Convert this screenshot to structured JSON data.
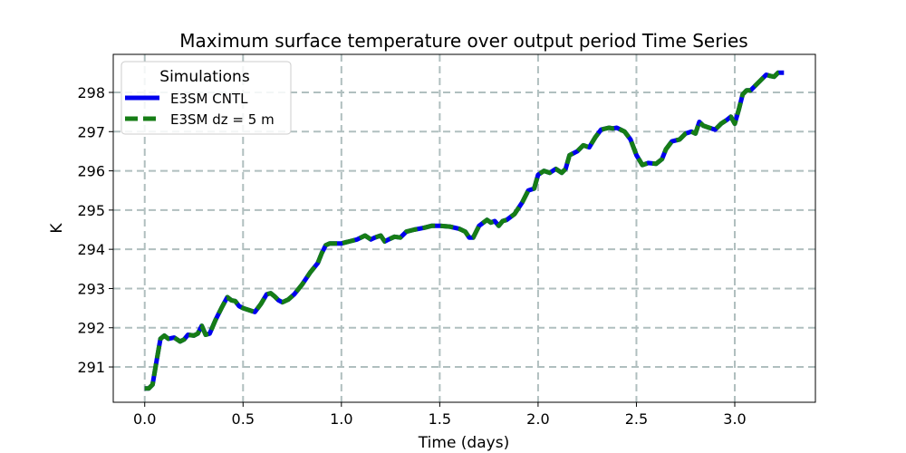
{
  "chart_data": {
    "type": "line",
    "title": "Maximum surface temperature over output period Time Series",
    "xlabel": "Time (days)",
    "ylabel": "K",
    "xlim": [
      -0.16,
      3.41
    ],
    "ylim": [
      290.1,
      298.97
    ],
    "xticks": [
      0.0,
      0.5,
      1.0,
      1.5,
      2.0,
      2.5,
      3.0
    ],
    "xtick_labels": [
      "0.0",
      "0.5",
      "1.0",
      "1.5",
      "2.0",
      "2.5",
      "3.0"
    ],
    "yticks": [
      291,
      292,
      293,
      294,
      295,
      296,
      297,
      298
    ],
    "ytick_labels": [
      "291",
      "292",
      "293",
      "294",
      "295",
      "296",
      "297",
      "298"
    ],
    "grid": true,
    "legend": {
      "title": "Simulations",
      "placement": "top-left"
    },
    "series": [
      {
        "name": "E3SM CNTL",
        "color": "#0000ee",
        "style": "solid",
        "x": [
          0.0,
          0.02,
          0.04,
          0.06,
          0.08,
          0.1,
          0.12,
          0.15,
          0.18,
          0.2,
          0.22,
          0.25,
          0.27,
          0.29,
          0.31,
          0.33,
          0.36,
          0.39,
          0.42,
          0.44,
          0.46,
          0.48,
          0.5,
          0.53,
          0.56,
          0.59,
          0.62,
          0.64,
          0.66,
          0.68,
          0.7,
          0.73,
          0.76,
          0.8,
          0.84,
          0.88,
          0.9,
          0.92,
          0.94,
          0.96,
          1.0,
          1.04,
          1.08,
          1.12,
          1.15,
          1.17,
          1.2,
          1.22,
          1.24,
          1.27,
          1.3,
          1.33,
          1.37,
          1.42,
          1.46,
          1.5,
          1.55,
          1.6,
          1.63,
          1.65,
          1.67,
          1.7,
          1.74,
          1.76,
          1.78,
          1.8,
          1.82,
          1.84,
          1.88,
          1.92,
          1.95,
          1.98,
          2.0,
          2.03,
          2.06,
          2.09,
          2.12,
          2.14,
          2.16,
          2.18,
          2.2,
          2.23,
          2.26,
          2.29,
          2.32,
          2.36,
          2.38,
          2.4,
          2.44,
          2.47,
          2.5,
          2.53,
          2.56,
          2.6,
          2.63,
          2.65,
          2.68,
          2.72,
          2.75,
          2.78,
          2.8,
          2.82,
          2.84,
          2.87,
          2.9,
          2.93,
          2.96,
          2.98,
          3.0,
          3.02,
          3.04,
          3.06,
          3.08,
          3.1,
          3.13,
          3.16,
          3.18,
          3.2,
          3.22,
          3.25
        ],
        "y": [
          290.45,
          290.45,
          290.55,
          291.15,
          291.72,
          291.8,
          291.72,
          291.75,
          291.65,
          291.7,
          291.82,
          291.8,
          291.85,
          292.05,
          291.82,
          291.85,
          292.2,
          292.5,
          292.78,
          292.7,
          292.68,
          292.55,
          292.5,
          292.45,
          292.4,
          292.6,
          292.85,
          292.88,
          292.8,
          292.7,
          292.65,
          292.72,
          292.85,
          293.1,
          293.4,
          293.65,
          293.9,
          294.1,
          294.15,
          294.15,
          294.15,
          294.2,
          294.25,
          294.35,
          294.25,
          294.3,
          294.35,
          294.2,
          294.25,
          294.32,
          294.3,
          294.45,
          294.5,
          294.55,
          294.6,
          294.6,
          294.58,
          294.52,
          294.45,
          294.3,
          294.3,
          294.6,
          294.75,
          294.68,
          294.72,
          294.6,
          294.72,
          294.75,
          294.9,
          295.2,
          295.5,
          295.55,
          295.9,
          296.0,
          295.95,
          296.05,
          295.95,
          296.05,
          296.4,
          296.45,
          296.5,
          296.65,
          296.6,
          296.85,
          297.05,
          297.1,
          297.08,
          297.1,
          297.0,
          296.8,
          296.4,
          296.15,
          296.2,
          296.18,
          296.3,
          296.55,
          296.75,
          296.8,
          296.95,
          297.0,
          296.95,
          297.25,
          297.15,
          297.1,
          297.05,
          297.2,
          297.3,
          297.38,
          297.2,
          297.55,
          297.95,
          298.05,
          298.05,
          298.15,
          298.3,
          298.45,
          298.42,
          298.4,
          298.5,
          298.5
        ]
      },
      {
        "name": "E3SM dz = 5 m",
        "color": "#167d16",
        "style": "dashed",
        "x": [
          0.0,
          0.02,
          0.04,
          0.06,
          0.08,
          0.1,
          0.12,
          0.15,
          0.18,
          0.2,
          0.22,
          0.25,
          0.27,
          0.29,
          0.31,
          0.33,
          0.36,
          0.39,
          0.42,
          0.44,
          0.46,
          0.48,
          0.5,
          0.53,
          0.56,
          0.59,
          0.62,
          0.64,
          0.66,
          0.68,
          0.7,
          0.73,
          0.76,
          0.8,
          0.84,
          0.88,
          0.9,
          0.92,
          0.94,
          0.96,
          1.0,
          1.04,
          1.08,
          1.12,
          1.15,
          1.17,
          1.2,
          1.22,
          1.24,
          1.27,
          1.3,
          1.33,
          1.37,
          1.42,
          1.46,
          1.5,
          1.55,
          1.6,
          1.63,
          1.65,
          1.67,
          1.7,
          1.74,
          1.76,
          1.78,
          1.8,
          1.82,
          1.84,
          1.88,
          1.92,
          1.95,
          1.98,
          2.0,
          2.03,
          2.06,
          2.09,
          2.12,
          2.14,
          2.16,
          2.18,
          2.2,
          2.23,
          2.26,
          2.29,
          2.32,
          2.36,
          2.38,
          2.4,
          2.44,
          2.47,
          2.5,
          2.53,
          2.56,
          2.6,
          2.63,
          2.65,
          2.68,
          2.72,
          2.75,
          2.78,
          2.8,
          2.82,
          2.84,
          2.87,
          2.9,
          2.93,
          2.96,
          2.98,
          3.0,
          3.02,
          3.04,
          3.06,
          3.08,
          3.1,
          3.13,
          3.16,
          3.18,
          3.2,
          3.22,
          3.25
        ],
        "y": [
          290.45,
          290.45,
          290.55,
          291.15,
          291.72,
          291.8,
          291.72,
          291.75,
          291.65,
          291.7,
          291.82,
          291.8,
          291.85,
          292.05,
          291.82,
          291.85,
          292.2,
          292.5,
          292.78,
          292.7,
          292.68,
          292.55,
          292.5,
          292.45,
          292.4,
          292.6,
          292.85,
          292.88,
          292.8,
          292.7,
          292.65,
          292.72,
          292.85,
          293.1,
          293.4,
          293.65,
          293.9,
          294.1,
          294.15,
          294.15,
          294.15,
          294.2,
          294.25,
          294.35,
          294.25,
          294.3,
          294.35,
          294.2,
          294.25,
          294.32,
          294.3,
          294.45,
          294.5,
          294.55,
          294.6,
          294.6,
          294.58,
          294.52,
          294.45,
          294.3,
          294.3,
          294.6,
          294.75,
          294.68,
          294.72,
          294.6,
          294.72,
          294.75,
          294.9,
          295.2,
          295.5,
          295.55,
          295.9,
          296.0,
          295.95,
          296.05,
          295.95,
          296.05,
          296.4,
          296.45,
          296.5,
          296.65,
          296.6,
          296.85,
          297.05,
          297.1,
          297.08,
          297.1,
          297.0,
          296.8,
          296.4,
          296.15,
          296.2,
          296.18,
          296.3,
          296.55,
          296.75,
          296.8,
          296.95,
          297.0,
          296.95,
          297.25,
          297.15,
          297.1,
          297.05,
          297.2,
          297.3,
          297.38,
          297.2,
          297.55,
          297.95,
          298.05,
          298.05,
          298.15,
          298.3,
          298.45,
          298.42,
          298.4,
          298.5,
          298.5
        ]
      }
    ]
  }
}
